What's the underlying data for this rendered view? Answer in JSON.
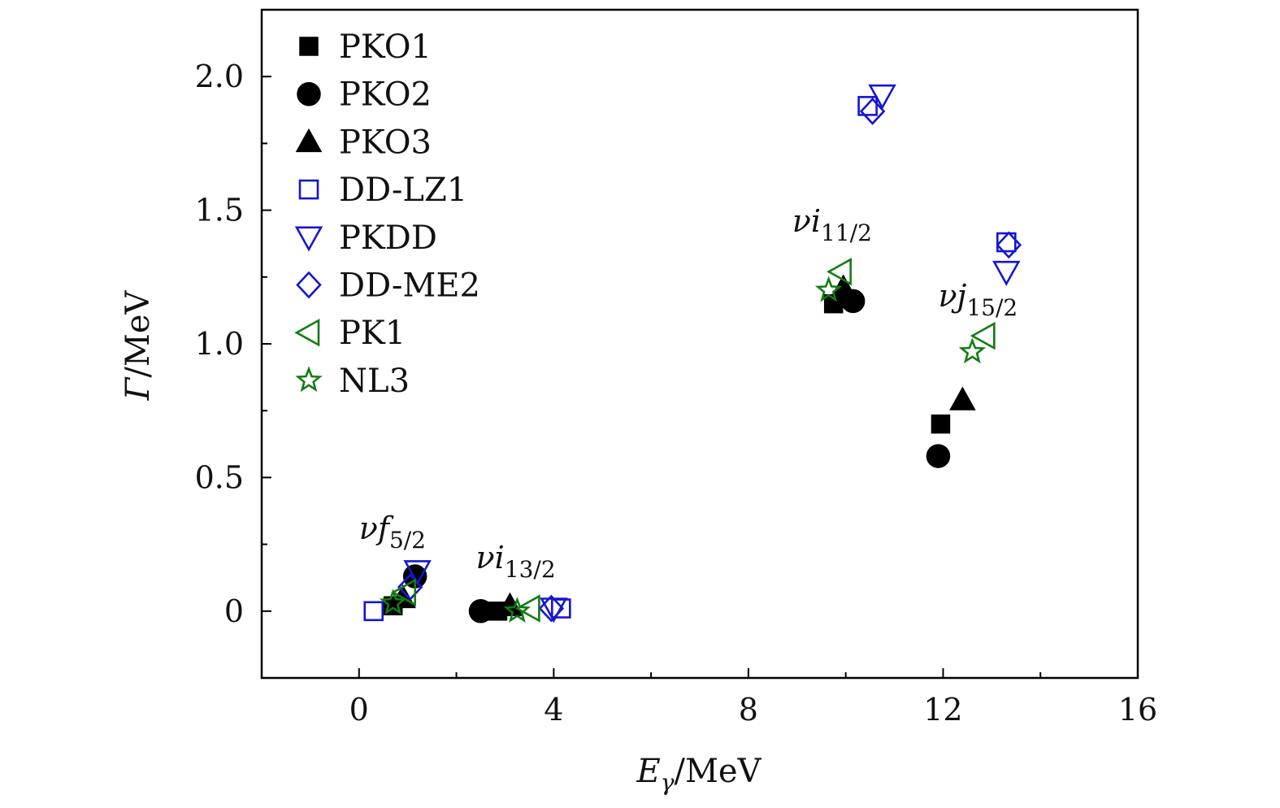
{
  "chart_data": {
    "type": "scatter",
    "xlabel": "Eγ/MeV",
    "xlabel_main": "E",
    "xlabel_sub": "γ",
    "xlabel_unit": "/MeV",
    "ylabel": "Γ/MeV",
    "ylabel_main": "Γ",
    "ylabel_unit": "/MeV",
    "xlim": [
      -2,
      16
    ],
    "ylim": [
      -0.25,
      2.25
    ],
    "xticks": [
      0,
      4,
      8,
      12,
      16
    ],
    "xtick_labels": [
      "0",
      "4",
      "8",
      "12",
      "16"
    ],
    "xticks_minor": [
      2,
      6,
      10,
      14
    ],
    "yticks": [
      0,
      0.5,
      1.0,
      1.5,
      2.0
    ],
    "ytick_labels": [
      "0",
      "0.5",
      "1.0",
      "1.5",
      "2.0"
    ],
    "yticks_minor": [
      0.25,
      0.75,
      1.25,
      1.75
    ],
    "grid": false,
    "legend_position": "top-left",
    "annotations": [
      {
        "id": "f52",
        "main": "νf",
        "sub": "5/2",
        "x": 0.0,
        "y": 0.27
      },
      {
        "id": "i132",
        "main": "νi",
        "sub": "13/2",
        "x": 2.4,
        "y": 0.16
      },
      {
        "id": "i112",
        "main": "νi",
        "sub": "11/2",
        "x": 8.9,
        "y": 1.42
      },
      {
        "id": "j152",
        "main": "νj",
        "sub": "15/2",
        "x": 11.9,
        "y": 1.14
      }
    ],
    "series": [
      {
        "name": "PKO1",
        "marker": "square",
        "filled": true,
        "color": "#000000",
        "points": [
          [
            0.7,
            0.02
          ],
          [
            2.85,
            0.0
          ],
          [
            9.75,
            1.15
          ],
          [
            11.95,
            0.7
          ]
        ]
      },
      {
        "name": "PKO2",
        "marker": "circle",
        "filled": true,
        "color": "#000000",
        "points": [
          [
            1.15,
            0.13
          ],
          [
            2.5,
            0.0
          ],
          [
            10.15,
            1.16
          ],
          [
            11.9,
            0.58
          ]
        ]
      },
      {
        "name": "PKO3",
        "marker": "triangle-up",
        "filled": true,
        "color": "#000000",
        "points": [
          [
            0.9,
            0.05
          ],
          [
            3.1,
            0.02
          ],
          [
            9.95,
            1.21
          ],
          [
            12.4,
            0.79
          ]
        ]
      },
      {
        "name": "DD-LZ1",
        "marker": "square",
        "filled": false,
        "color": "#1515d4",
        "points": [
          [
            0.3,
            0.0
          ],
          [
            4.15,
            0.01
          ],
          [
            10.45,
            1.89
          ],
          [
            13.3,
            1.38
          ]
        ]
      },
      {
        "name": "PKDD",
        "marker": "triangle-down",
        "filled": false,
        "color": "#1515d4",
        "points": [
          [
            1.2,
            0.15
          ],
          [
            4.0,
            0.01
          ],
          [
            10.75,
            1.93
          ],
          [
            13.3,
            1.27
          ]
        ]
      },
      {
        "name": "DD-ME2",
        "marker": "diamond",
        "filled": false,
        "color": "#1515d4",
        "points": [
          [
            1.05,
            0.09
          ],
          [
            3.95,
            0.01
          ],
          [
            10.55,
            1.87
          ],
          [
            13.35,
            1.37
          ]
        ]
      },
      {
        "name": "PK1",
        "marker": "triangle-left",
        "filled": false,
        "color": "#137c13",
        "points": [
          [
            0.95,
            0.07
          ],
          [
            3.5,
            0.01
          ],
          [
            9.9,
            1.27
          ],
          [
            12.85,
            1.03
          ]
        ]
      },
      {
        "name": "NL3",
        "marker": "star",
        "filled": false,
        "color": "#137c13",
        "points": [
          [
            0.7,
            0.03
          ],
          [
            3.25,
            0.0
          ],
          [
            9.65,
            1.2
          ],
          [
            12.6,
            0.97
          ]
        ]
      }
    ]
  }
}
